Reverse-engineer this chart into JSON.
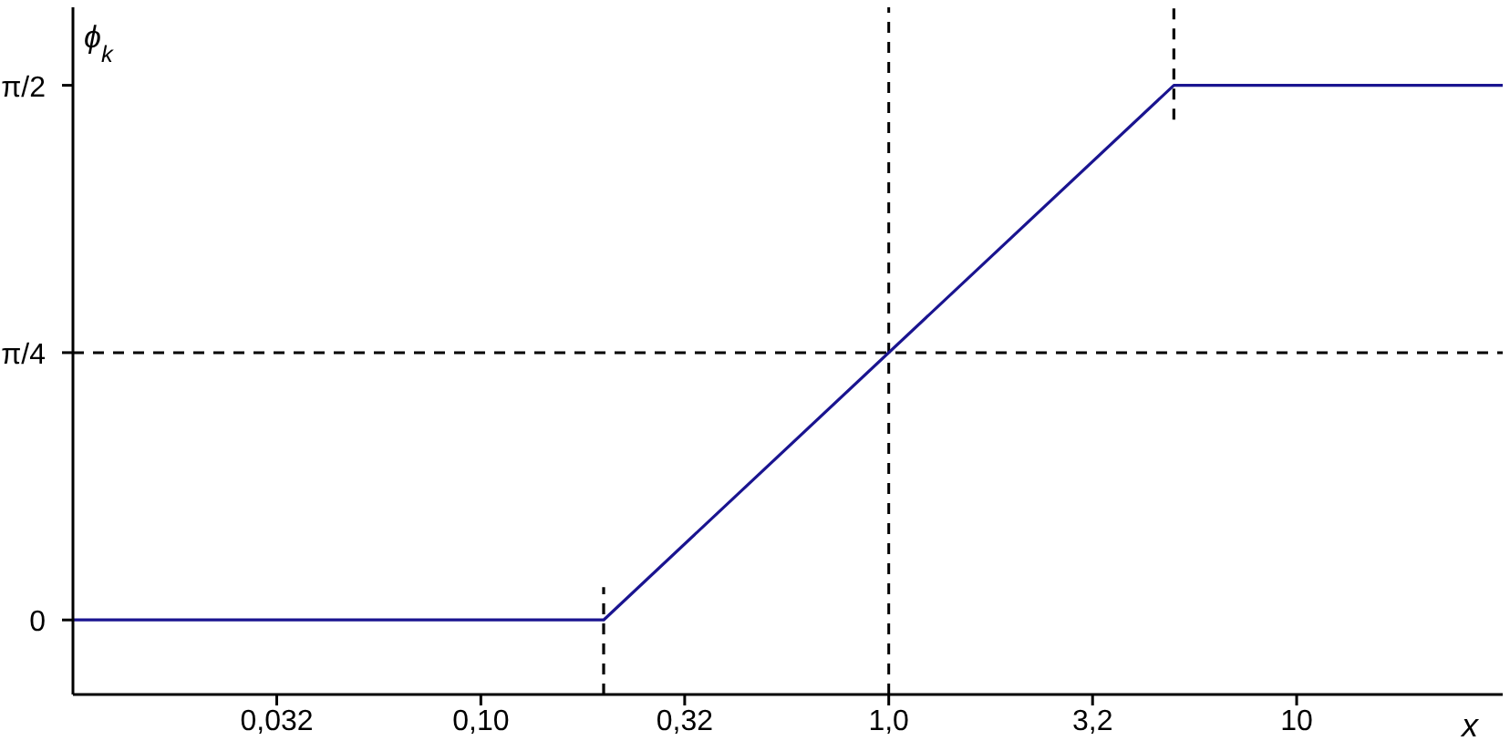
{
  "chart_data": {
    "type": "line",
    "xlabel": "x",
    "annotations": [
      "ϕ$_{k}$"
    ],
    "log": "x",
    "marker": "none",
    "xlim": [
      0.01,
      32
    ],
    "ylim": [
      -0.219,
      1.8
    ],
    "xticks": [
      {
        "value": 0.0316,
        "label": "0,032"
      },
      {
        "value": 0.1,
        "label": "0,10"
      },
      {
        "value": 0.316,
        "label": "0,32"
      },
      {
        "value": 1,
        "label": "1,0"
      },
      {
        "value": 3.16,
        "label": "3,2"
      },
      {
        "value": 10,
        "label": "10"
      }
    ],
    "yticks": [
      {
        "value": 0,
        "label": "0"
      },
      {
        "value": 0.7854,
        "label": "π/4"
      },
      {
        "value": 1.5708,
        "label": "π/2"
      }
    ],
    "series": [
      {
        "color": "#1a1490",
        "x": [
          0.01,
          0.2,
          5,
          32
        ],
        "values": [
          0,
          0,
          1.5708,
          1.5708
        ],
        "line_style": "solid"
      },
      {
        "color": "#000000",
        "x": [
          0.2,
          0.2
        ],
        "values": [
          -0.219,
          0.096
        ],
        "line_style": "dashed"
      },
      {
        "color": "#000000",
        "x": [
          5,
          5
        ],
        "values": [
          1.47,
          1.8
        ],
        "line_style": "dashed"
      }
    ],
    "ref_lines": [
      {
        "axis": "x",
        "value": 1,
        "color": "#000000",
        "line_style": "dashed"
      },
      {
        "axis": "y",
        "value": 0.7854,
        "color": "#000000",
        "line_style": "dashed"
      }
    ]
  }
}
